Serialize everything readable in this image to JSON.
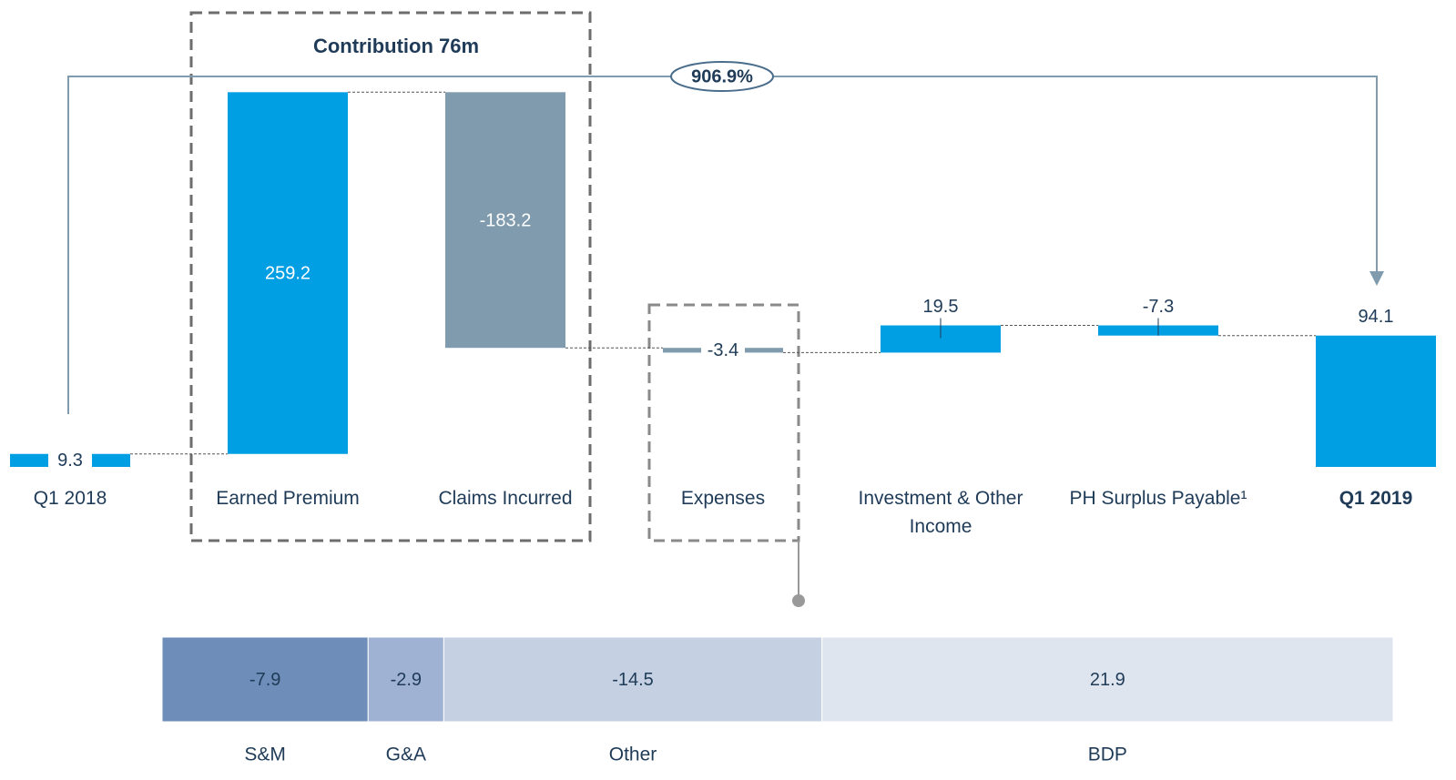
{
  "chart_data": {
    "type": "waterfall",
    "annotations": [
      "Contribution 76m",
      "906.9%"
    ],
    "categories": [
      "Q1 2018",
      "Earned Premium",
      "Claims Incurred",
      "Expenses",
      "Investment & Other Income",
      "PH Surplus Payable¹",
      "Q1 2019"
    ],
    "values": [
      9.3,
      259.2,
      -183.2,
      -3.4,
      19.5,
      -7.3,
      94.1
    ],
    "measures": [
      "total",
      "relative",
      "relative",
      "relative",
      "relative",
      "relative",
      "total"
    ],
    "colors": [
      "#009fe3",
      "#009fe3",
      "#7f9bad",
      "#7f9bad",
      "#009fe3",
      "#009fe3",
      "#009fe3"
    ],
    "ylim": [
      0,
      270
    ],
    "breakdown": {
      "type": "proportional-bar",
      "categories": [
        "S&M",
        "G&A",
        "Other",
        "BDP"
      ],
      "values": [
        -7.9,
        -2.9,
        -14.5,
        21.9
      ],
      "colors": [
        "#6e8db8",
        "#9fb2d3",
        "#c5d0e3",
        "#dfe5ef"
      ]
    }
  }
}
